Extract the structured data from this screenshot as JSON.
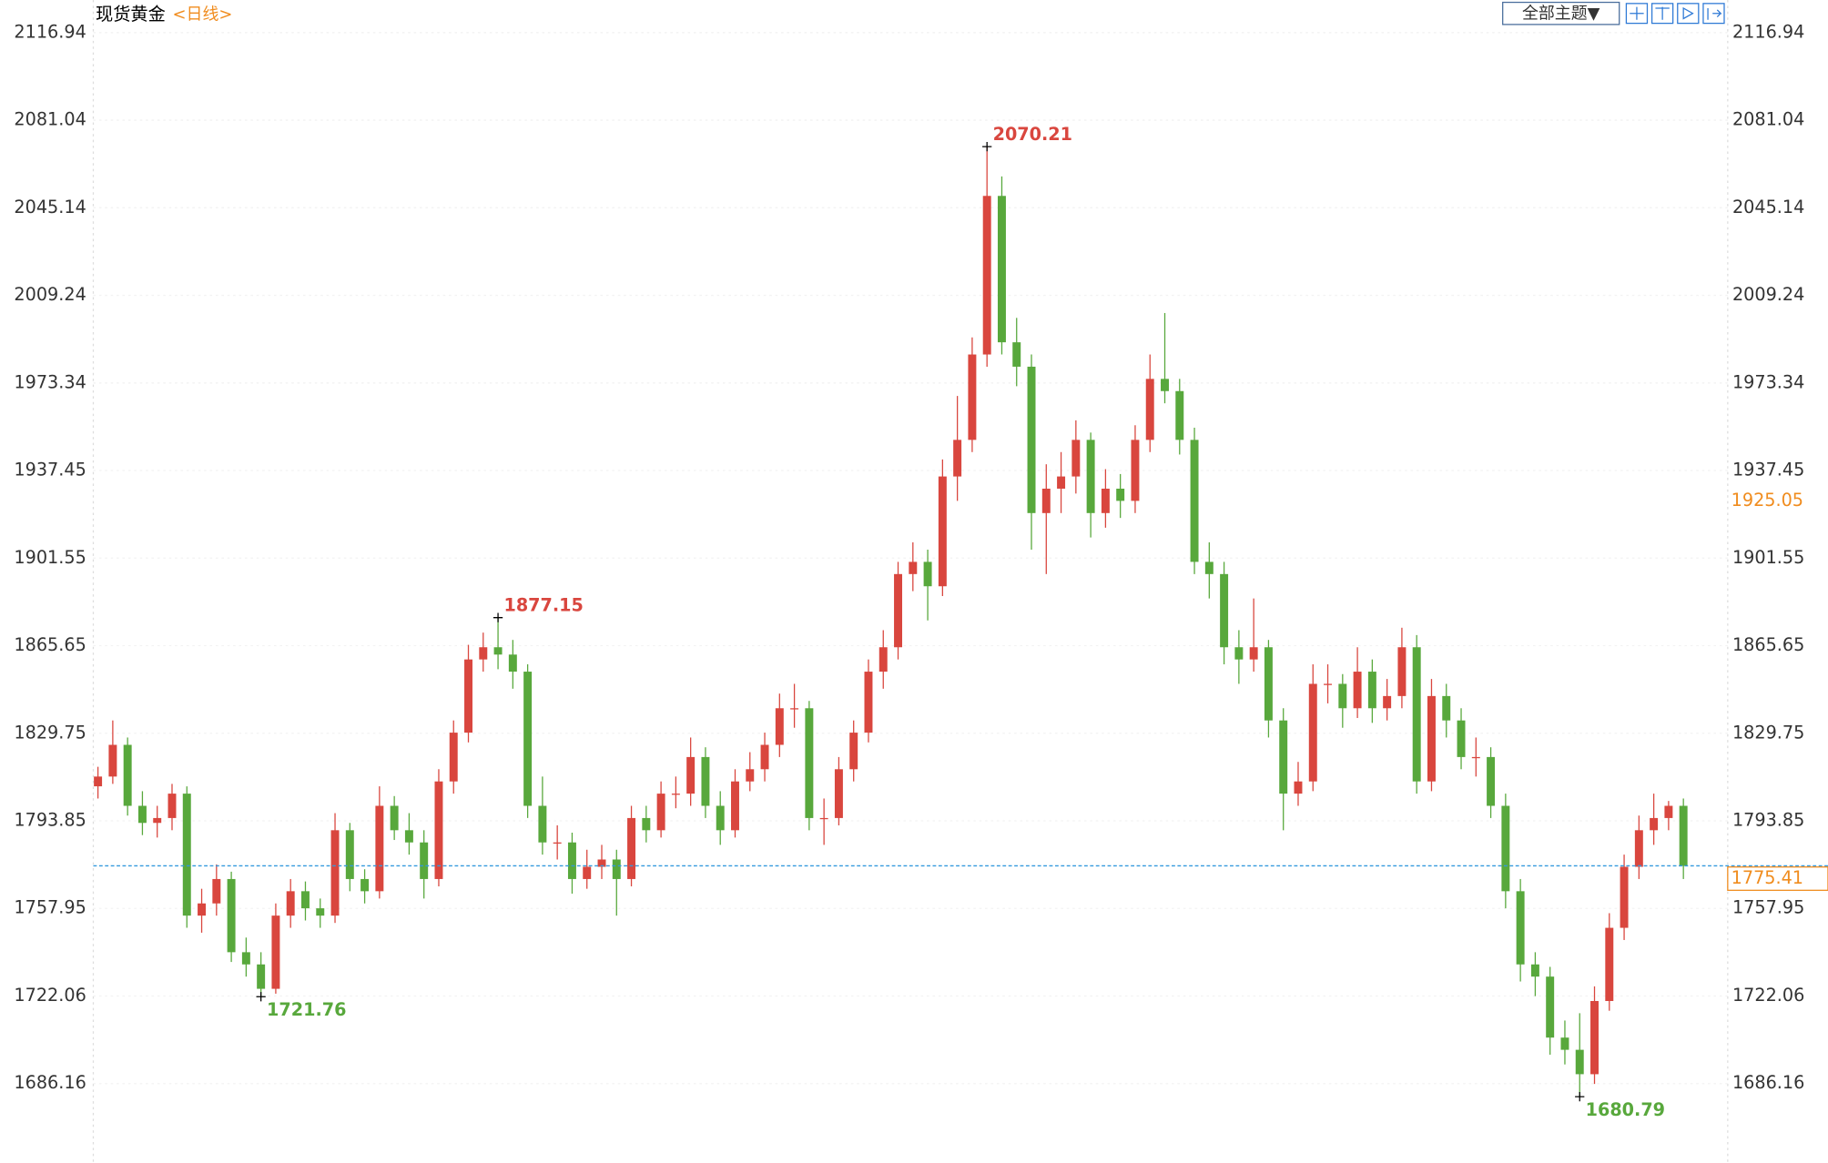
{
  "chart_data": {
    "type": "candlestick",
    "title": "现货黄金",
    "period": "<日线>",
    "theme_button": "全部主题▼",
    "up_color": "#d9463e",
    "down_color": "#58a83c",
    "ylim": [
      1653.6,
      2130.3
    ],
    "yticks": [
      2116.94,
      2081.04,
      2045.14,
      2009.24,
      1973.34,
      1937.45,
      1901.55,
      1865.65,
      1829.75,
      1793.85,
      1757.95,
      1722.06,
      1686.16
    ],
    "crosshair_value": 1925.05,
    "ohlc": [
      [
        1808,
        1816,
        1803,
        1812
      ],
      [
        1812,
        1835,
        1809,
        1825
      ],
      [
        1825,
        1828,
        1796,
        1800
      ],
      [
        1800,
        1806,
        1788,
        1793
      ],
      [
        1793,
        1800,
        1787,
        1795
      ],
      [
        1795,
        1809,
        1790,
        1805
      ],
      [
        1805,
        1808,
        1750,
        1755
      ],
      [
        1755,
        1766,
        1748,
        1760
      ],
      [
        1760,
        1776,
        1755,
        1770
      ],
      [
        1770,
        1773,
        1736,
        1740
      ],
      [
        1740,
        1746,
        1730,
        1735
      ],
      [
        1735,
        1740,
        1721.76,
        1725
      ],
      [
        1725,
        1760,
        1723,
        1755
      ],
      [
        1755,
        1770,
        1750,
        1765
      ],
      [
        1765,
        1769,
        1753,
        1758
      ],
      [
        1758,
        1762,
        1750,
        1755
      ],
      [
        1755,
        1797,
        1752,
        1790
      ],
      [
        1790,
        1793,
        1765,
        1770
      ],
      [
        1770,
        1774,
        1760,
        1765
      ],
      [
        1765,
        1808,
        1762,
        1800
      ],
      [
        1800,
        1804,
        1786,
        1790
      ],
      [
        1790,
        1797,
        1780,
        1785
      ],
      [
        1785,
        1790,
        1762,
        1770
      ],
      [
        1770,
        1815,
        1767,
        1810
      ],
      [
        1810,
        1835,
        1805,
        1830
      ],
      [
        1830,
        1866,
        1826,
        1860
      ],
      [
        1860,
        1871,
        1855,
        1865
      ],
      [
        1865,
        1877.15,
        1856,
        1862
      ],
      [
        1862,
        1868,
        1848,
        1855
      ],
      [
        1855,
        1858,
        1795,
        1800
      ],
      [
        1800,
        1812,
        1780,
        1785
      ],
      [
        1785,
        1792,
        1778,
        1785
      ],
      [
        1785,
        1789,
        1764,
        1770
      ],
      [
        1770,
        1782,
        1766,
        1775
      ],
      [
        1775,
        1784,
        1770,
        1778
      ],
      [
        1778,
        1782,
        1755,
        1770
      ],
      [
        1770,
        1800,
        1767,
        1795
      ],
      [
        1795,
        1800,
        1785,
        1790
      ],
      [
        1790,
        1810,
        1787,
        1805
      ],
      [
        1805,
        1812,
        1799,
        1805
      ],
      [
        1805,
        1828,
        1800,
        1820
      ],
      [
        1820,
        1824,
        1795,
        1800
      ],
      [
        1800,
        1806,
        1784,
        1790
      ],
      [
        1790,
        1815,
        1787,
        1810
      ],
      [
        1810,
        1822,
        1806,
        1815
      ],
      [
        1815,
        1830,
        1810,
        1825
      ],
      [
        1825,
        1846,
        1820,
        1840
      ],
      [
        1840,
        1850,
        1832,
        1840
      ],
      [
        1840,
        1843,
        1790,
        1795
      ],
      [
        1795,
        1803,
        1784,
        1795
      ],
      [
        1795,
        1820,
        1792,
        1815
      ],
      [
        1815,
        1835,
        1810,
        1830
      ],
      [
        1830,
        1860,
        1826,
        1855
      ],
      [
        1855,
        1872,
        1848,
        1865
      ],
      [
        1865,
        1900,
        1860,
        1895
      ],
      [
        1895,
        1908,
        1888,
        1900
      ],
      [
        1900,
        1905,
        1876,
        1890
      ],
      [
        1890,
        1942,
        1886,
        1935
      ],
      [
        1935,
        1968,
        1925,
        1950
      ],
      [
        1950,
        1992,
        1945,
        1985
      ],
      [
        1985,
        2070.21,
        1980,
        2050
      ],
      [
        2050,
        2058,
        1985,
        1990
      ],
      [
        1990,
        2000,
        1972,
        1980
      ],
      [
        1980,
        1985,
        1905,
        1920
      ],
      [
        1920,
        1940,
        1895,
        1930
      ],
      [
        1930,
        1945,
        1920,
        1935
      ],
      [
        1935,
        1958,
        1928,
        1950
      ],
      [
        1950,
        1953,
        1910,
        1920
      ],
      [
        1920,
        1938,
        1914,
        1930
      ],
      [
        1930,
        1936,
        1918,
        1925
      ],
      [
        1925,
        1956,
        1920,
        1950
      ],
      [
        1950,
        1985,
        1945,
        1975
      ],
      [
        1975,
        2002,
        1965,
        1970
      ],
      [
        1970,
        1975,
        1944,
        1950
      ],
      [
        1950,
        1955,
        1895,
        1900
      ],
      [
        1900,
        1908,
        1885,
        1895
      ],
      [
        1895,
        1900,
        1858,
        1865
      ],
      [
        1865,
        1872,
        1850,
        1860
      ],
      [
        1860,
        1885,
        1855,
        1865
      ],
      [
        1865,
        1868,
        1828,
        1835
      ],
      [
        1835,
        1840,
        1790,
        1805
      ],
      [
        1805,
        1818,
        1800,
        1810
      ],
      [
        1810,
        1858,
        1806,
        1850
      ],
      [
        1850,
        1858,
        1842,
        1850
      ],
      [
        1850,
        1854,
        1832,
        1840
      ],
      [
        1840,
        1865,
        1836,
        1855
      ],
      [
        1855,
        1860,
        1834,
        1840
      ],
      [
        1840,
        1852,
        1835,
        1845
      ],
      [
        1845,
        1873,
        1840,
        1865
      ],
      [
        1865,
        1870,
        1805,
        1810
      ],
      [
        1810,
        1852,
        1806,
        1845
      ],
      [
        1845,
        1850,
        1828,
        1835
      ],
      [
        1835,
        1840,
        1815,
        1820
      ],
      [
        1820,
        1828,
        1812,
        1820
      ],
      [
        1820,
        1824,
        1795,
        1800
      ],
      [
        1800,
        1805,
        1758,
        1765
      ],
      [
        1765,
        1770,
        1728,
        1735
      ],
      [
        1735,
        1740,
        1722,
        1730
      ],
      [
        1730,
        1734,
        1698,
        1705
      ],
      [
        1705,
        1712,
        1694,
        1700
      ],
      [
        1700,
        1715,
        1680.79,
        1690
      ],
      [
        1690,
        1726,
        1686,
        1720
      ],
      [
        1720,
        1756,
        1716,
        1750
      ],
      [
        1750,
        1780,
        1745,
        1775
      ],
      [
        1775,
        1796,
        1770,
        1790
      ],
      [
        1790,
        1805,
        1784,
        1795
      ],
      [
        1795,
        1802,
        1790,
        1800
      ],
      [
        1800,
        1803,
        1770,
        1775.41
      ]
    ]
  }
}
